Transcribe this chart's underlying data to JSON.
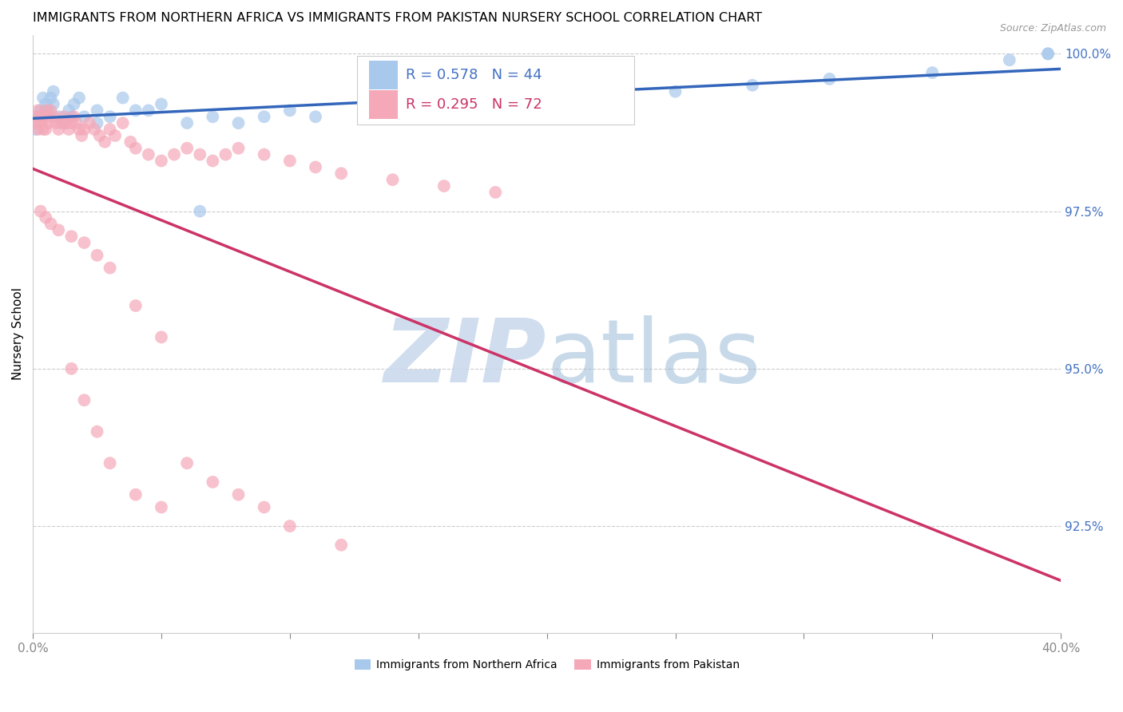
{
  "title": "IMMIGRANTS FROM NORTHERN AFRICA VS IMMIGRANTS FROM PAKISTAN NURSERY SCHOOL CORRELATION CHART",
  "source": "Source: ZipAtlas.com",
  "ylabel": "Nursery School",
  "series1_label": "Immigrants from Northern Africa",
  "series2_label": "Immigrants from Pakistan",
  "series1_color": "#A8C8EC",
  "series2_color": "#F4A8B8",
  "series1_line_color": "#3366BB",
  "series2_line_color": "#CC3366",
  "legend_r1": "R = 0.578",
  "legend_n1": "N = 44",
  "legend_r2": "R = 0.295",
  "legend_n2": "N = 72",
  "xlim": [
    0.0,
    0.4
  ],
  "ylim": [
    0.908,
    1.003
  ],
  "yticks": [
    0.925,
    0.95,
    0.975,
    1.0
  ],
  "ytick_labels": [
    "92.5%",
    "95.0%",
    "97.5%",
    "100.0%"
  ],
  "xtick_labels": [
    "0.0%",
    "",
    "",
    "",
    "",
    "",
    "",
    "",
    "40.0%"
  ],
  "blue_x": [
    0.001,
    0.002,
    0.003,
    0.004,
    0.005,
    0.006,
    0.007,
    0.008,
    0.01,
    0.012,
    0.014,
    0.016,
    0.018,
    0.02,
    0.025,
    0.03,
    0.035,
    0.04,
    0.05,
    0.06,
    0.07,
    0.08,
    0.09,
    0.1,
    0.11,
    0.13,
    0.15,
    0.17,
    0.19,
    0.22,
    0.25,
    0.28,
    0.31,
    0.35,
    0.38,
    0.395,
    0.003,
    0.005,
    0.008,
    0.015,
    0.025,
    0.045,
    0.065,
    0.395
  ],
  "blue_y": [
    0.988,
    0.99,
    0.991,
    0.993,
    0.992,
    0.991,
    0.993,
    0.994,
    0.99,
    0.989,
    0.991,
    0.992,
    0.993,
    0.99,
    0.991,
    0.99,
    0.993,
    0.991,
    0.992,
    0.989,
    0.99,
    0.989,
    0.99,
    0.991,
    0.99,
    0.992,
    0.991,
    0.991,
    0.992,
    0.993,
    0.994,
    0.995,
    0.996,
    0.997,
    0.999,
    1.0,
    0.99,
    0.991,
    0.992,
    0.99,
    0.989,
    0.991,
    0.975,
    1.0
  ],
  "pink_x": [
    0.001,
    0.001,
    0.002,
    0.002,
    0.003,
    0.003,
    0.004,
    0.004,
    0.005,
    0.005,
    0.006,
    0.006,
    0.007,
    0.008,
    0.009,
    0.01,
    0.011,
    0.012,
    0.013,
    0.014,
    0.015,
    0.016,
    0.017,
    0.018,
    0.019,
    0.02,
    0.022,
    0.024,
    0.026,
    0.028,
    0.03,
    0.032,
    0.035,
    0.038,
    0.04,
    0.045,
    0.05,
    0.055,
    0.06,
    0.065,
    0.07,
    0.075,
    0.08,
    0.09,
    0.1,
    0.11,
    0.12,
    0.14,
    0.16,
    0.18,
    0.003,
    0.005,
    0.007,
    0.01,
    0.015,
    0.02,
    0.025,
    0.03,
    0.04,
    0.05,
    0.015,
    0.02,
    0.025,
    0.03,
    0.04,
    0.05,
    0.06,
    0.07,
    0.08,
    0.09,
    0.1,
    0.12
  ],
  "pink_y": [
    0.99,
    0.989,
    0.988,
    0.991,
    0.99,
    0.989,
    0.988,
    0.99,
    0.991,
    0.988,
    0.99,
    0.989,
    0.991,
    0.99,
    0.989,
    0.988,
    0.989,
    0.99,
    0.989,
    0.988,
    0.989,
    0.99,
    0.989,
    0.988,
    0.987,
    0.988,
    0.989,
    0.988,
    0.987,
    0.986,
    0.988,
    0.987,
    0.989,
    0.986,
    0.985,
    0.984,
    0.983,
    0.984,
    0.985,
    0.984,
    0.983,
    0.984,
    0.985,
    0.984,
    0.983,
    0.982,
    0.981,
    0.98,
    0.979,
    0.978,
    0.975,
    0.974,
    0.973,
    0.972,
    0.971,
    0.97,
    0.968,
    0.966,
    0.96,
    0.955,
    0.95,
    0.945,
    0.94,
    0.935,
    0.93,
    0.928,
    0.935,
    0.932,
    0.93,
    0.928,
    0.925,
    0.922
  ]
}
